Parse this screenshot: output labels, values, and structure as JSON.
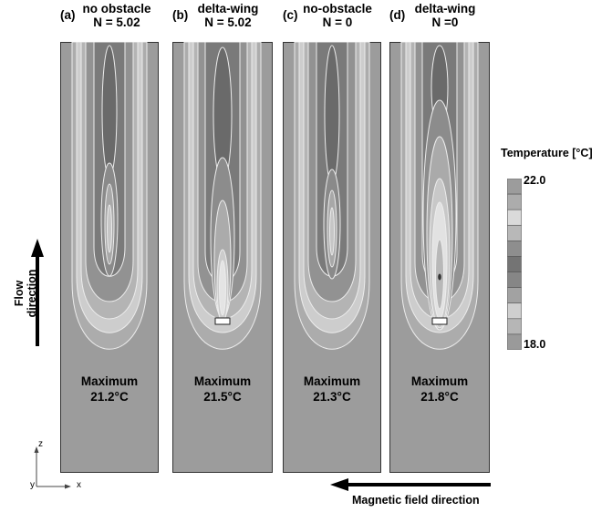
{
  "panels": [
    {
      "letter": "(a)",
      "title_line1": "no obstacle",
      "title_line2": "N = 5.02",
      "max_label": "Maximum",
      "max_value": "21.2°C",
      "obstacle": false
    },
    {
      "letter": "(b)",
      "title_line1": "delta-wing",
      "title_line2": "N = 5.02",
      "max_label": "Maximum",
      "max_value": "21.5°C",
      "obstacle": true
    },
    {
      "letter": "(c)",
      "title_line1": "no-obstacle",
      "title_line2": "N = 0",
      "max_label": "Maximum",
      "max_value": "21.3°C",
      "obstacle": false
    },
    {
      "letter": "(d)",
      "title_line1": "delta-wing",
      "title_line2": "N =0",
      "max_label": "Maximum",
      "max_value": "21.8°C",
      "obstacle": true
    }
  ],
  "legend": {
    "title": "Temperature [°C]",
    "max": "22.0",
    "min": "18.0",
    "colors": [
      "#9c9c9c",
      "#acacac",
      "#dadada",
      "#b8b8b8",
      "#8e8e8e",
      "#747474",
      "#868686",
      "#a2a2a2",
      "#cfcfcf",
      "#b6b6b6",
      "#9a9a9a"
    ]
  },
  "arrows": {
    "flow_label": "Flow direction",
    "magnetic_label": "Magnetic field direction"
  },
  "axes": {
    "z_label": "z",
    "y_label": "y",
    "x_label": "x"
  }
}
